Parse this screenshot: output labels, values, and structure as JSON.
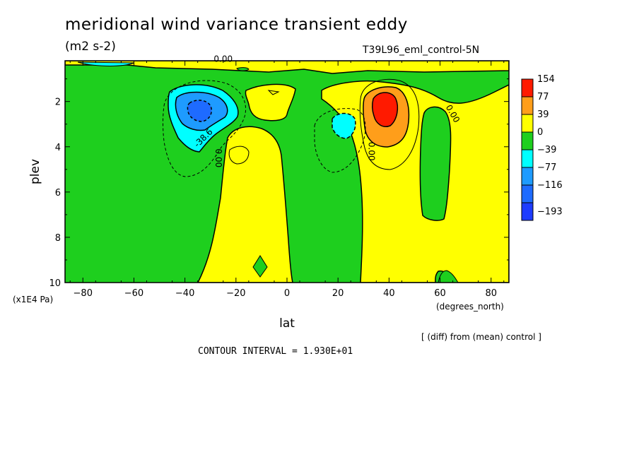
{
  "title": "meridional wind variance transient eddy",
  "units": "(m2 s-2)",
  "run_name": "T39L96_eml_control-5N",
  "footnote": "[ (diff) from (mean) control ]",
  "contour_interval": "CONTOUR INTERVAL = 1.930E+01",
  "chart_data": {
    "type": "heatmap",
    "xlabel": "lat",
    "x_unit": "(degrees_north)",
    "ylabel": "plev",
    "y_unit": "(x1E4 Pa)",
    "xlim": [
      -87,
      87
    ],
    "ylim": [
      10,
      0.2
    ],
    "x_ticks": [
      -80,
      -60,
      -40,
      -20,
      0,
      20,
      40,
      60,
      80
    ],
    "x_tick_labels": [
      "−80",
      "−60",
      "−40",
      "−20",
      "0",
      "20",
      "40",
      "60",
      "80"
    ],
    "y_ticks": [
      2,
      4,
      6,
      8,
      10
    ],
    "y_tick_labels": [
      "2",
      "4",
      "6",
      "8",
      "10"
    ],
    "levels": [
      {
        "label": "154",
        "color": "#ff1a00"
      },
      {
        "label": "77",
        "color": "#ff9e1a"
      },
      {
        "label": "39",
        "color": "#ffff00"
      },
      {
        "label": "0",
        "color": "#1ecf1e"
      },
      {
        "label": "−39",
        "color": "#00ffff"
      },
      {
        "label": "−77",
        "color": "#1e9bff"
      },
      {
        "label": "−116",
        "color": "#1e6bff"
      },
      {
        "label": "−193",
        "color": "#1e3cff"
      }
    ],
    "contour_labels": [
      {
        "text": "0.00",
        "x": -28,
        "y": 4.5,
        "rotate": 90
      },
      {
        "text": "-38.6",
        "x": -32,
        "y": 3.7,
        "rotate": -45
      },
      {
        "text": "0.00",
        "x": 32,
        "y": 4.2,
        "rotate": 90
      },
      {
        "text": "0.00",
        "x": 64,
        "y": 2.6,
        "rotate": 60
      },
      {
        "text": "0.00",
        "x": -25,
        "y": 0.25,
        "rotate": 0
      }
    ],
    "regions": [
      {
        "name": "sh-upper-negative-center",
        "value": -150,
        "lat": -34,
        "plev": 2.4
      },
      {
        "name": "nh-upper-positive-center",
        "value": 160,
        "lat": 38,
        "plev": 2.3
      },
      {
        "name": "tropics-upper-negative",
        "value": -50,
        "lat": 22,
        "plev": 3.0
      }
    ]
  }
}
